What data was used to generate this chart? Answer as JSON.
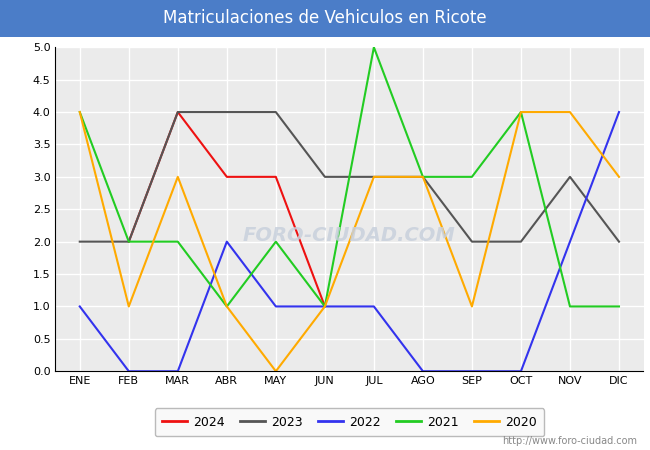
{
  "title": "Matriculaciones de Vehiculos en Ricote",
  "title_color": "white",
  "title_bg_color": "#4B7DC8",
  "months": [
    "ENE",
    "FEB",
    "MAR",
    "ABR",
    "MAY",
    "JUN",
    "JUL",
    "AGO",
    "SEP",
    "OCT",
    "NOV",
    "DIC"
  ],
  "series": {
    "2024": {
      "color": "#EE1111",
      "values": [
        null,
        2.0,
        4.0,
        3.0,
        3.0,
        1.0,
        null,
        null,
        null,
        null,
        null,
        null
      ]
    },
    "2023": {
      "color": "#555555",
      "values": [
        2.0,
        2.0,
        4.0,
        4.0,
        4.0,
        3.0,
        3.0,
        3.0,
        2.0,
        2.0,
        3.0,
        2.0
      ]
    },
    "2022": {
      "color": "#3333EE",
      "values": [
        1.0,
        0.0,
        0.0,
        2.0,
        1.0,
        1.0,
        1.0,
        0.0,
        0.0,
        0.0,
        2.0,
        4.0
      ]
    },
    "2021": {
      "color": "#22CC22",
      "values": [
        4.0,
        2.0,
        2.0,
        1.0,
        2.0,
        1.0,
        5.0,
        3.0,
        3.0,
        4.0,
        1.0,
        1.0
      ]
    },
    "2020": {
      "color": "#FFAA00",
      "values": [
        4.0,
        1.0,
        3.0,
        1.0,
        0.0,
        1.0,
        3.0,
        3.0,
        1.0,
        4.0,
        4.0,
        3.0
      ]
    }
  },
  "ylim": [
    0.0,
    5.0
  ],
  "yticks": [
    0.0,
    0.5,
    1.0,
    1.5,
    2.0,
    2.5,
    3.0,
    3.5,
    4.0,
    4.5,
    5.0
  ],
  "plot_bg_color": "#EBEBEB",
  "figure_bg_color": "#FFFFFF",
  "grid_color": "#FFFFFF",
  "grid_linewidth": 1.0,
  "line_linewidth": 1.5,
  "watermark_text": "FORO-CIUDAD.COM",
  "watermark_color": "#C8D0DC",
  "url_text": "http://www.foro-ciudad.com",
  "url_color": "#888888",
  "legend_years": [
    "2024",
    "2023",
    "2022",
    "2021",
    "2020"
  ],
  "tick_fontsize": 8,
  "title_fontsize": 12
}
